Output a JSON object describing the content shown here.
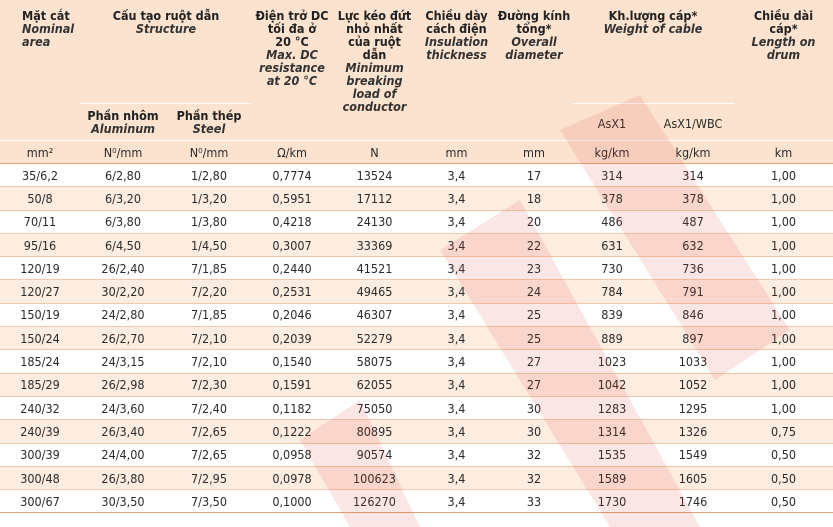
{
  "headers": {
    "area": {
      "vi": "Mặt cắt",
      "en1": "Nominal",
      "en2": "area"
    },
    "structure": {
      "vi": "Cấu tạo ruột dẫn",
      "en": "Structure"
    },
    "aluminum": {
      "vi": "Phần nhôm",
      "en": "Aluminum"
    },
    "steel": {
      "vi": "Phần thép",
      "en": "Steel"
    },
    "resistance": {
      "vi1": "Điện trở DC",
      "vi2": "tối đa ở",
      "vi3": "20 °C",
      "en1": "Max. DC",
      "en2": "resistance",
      "en3": "at 20 °C"
    },
    "breaking": {
      "vi1": "Lực kéo đứt",
      "vi2": "nhỏ nhất",
      "vi3": "của ruột",
      "vi4": "dẫn",
      "en1": "Minimum",
      "en2": "breaking",
      "en3": "load of",
      "en4": "conductor"
    },
    "insulation": {
      "vi1": "Chiều dày",
      "vi2": "cách điện",
      "en1": "Insulation",
      "en2": "thickness"
    },
    "diameter": {
      "vi1": "Đường kính",
      "vi2": "tổng*",
      "en1": "Overall",
      "en2": "diameter"
    },
    "weight": {
      "vi": "Kh.lượng cáp*",
      "en": "Weight of cable",
      "sub1": "AsX1",
      "sub2": "AsX1/WBC"
    },
    "length": {
      "vi1": "Chiều dài",
      "vi2": "cáp*",
      "en1": "Length on",
      "en2": "drum"
    }
  },
  "units": [
    "mm²",
    "N⁰/mm",
    "N⁰/mm",
    "Ω/km",
    "N",
    "mm",
    "mm",
    "kg/km",
    "kg/km",
    "km"
  ],
  "rows": [
    [
      "35/6,2",
      "6/2,80",
      "1/2,80",
      "0,7774",
      "13524",
      "3,4",
      "17",
      "314",
      "314",
      "1,00"
    ],
    [
      "50/8",
      "6/3,20",
      "1/3,20",
      "0,5951",
      "17112",
      "3,4",
      "18",
      "378",
      "378",
      "1,00"
    ],
    [
      "70/11",
      "6/3,80",
      "1/3,80",
      "0,4218",
      "24130",
      "3,4",
      "20",
      "486",
      "487",
      "1,00"
    ],
    [
      "95/16",
      "6/4,50",
      "1/4,50",
      "0,3007",
      "33369",
      "3,4",
      "22",
      "631",
      "632",
      "1,00"
    ],
    [
      "120/19",
      "26/2,40",
      "7/1,85",
      "0,2440",
      "41521",
      "3,4",
      "23",
      "730",
      "736",
      "1,00"
    ],
    [
      "120/27",
      "30/2,20",
      "7/2,20",
      "0,2531",
      "49465",
      "3,4",
      "24",
      "784",
      "791",
      "1,00"
    ],
    [
      "150/19",
      "24/2,80",
      "7/1,85",
      "0,2046",
      "46307",
      "3,4",
      "25",
      "839",
      "846",
      "1,00"
    ],
    [
      "150/24",
      "26/2,70",
      "7/2,10",
      "0,2039",
      "52279",
      "3,4",
      "25",
      "889",
      "897",
      "1,00"
    ],
    [
      "185/24",
      "24/3,15",
      "7/2,10",
      "0,1540",
      "58075",
      "3,4",
      "27",
      "1023",
      "1033",
      "1,00"
    ],
    [
      "185/29",
      "26/2,98",
      "7/2,30",
      "0,1591",
      "62055",
      "3,4",
      "27",
      "1042",
      "1052",
      "1,00"
    ],
    [
      "240/32",
      "24/3,60",
      "7/2,40",
      "0,1182",
      "75050",
      "3,4",
      "30",
      "1283",
      "1295",
      "1,00"
    ],
    [
      "240/39",
      "26/3,40",
      "7/2,65",
      "0,1222",
      "80895",
      "3,4",
      "30",
      "1314",
      "1326",
      "0,75"
    ],
    [
      "300/39",
      "24/4,00",
      "7/2,65",
      "0,0958",
      "90574",
      "3,4",
      "32",
      "1535",
      "1549",
      "0,50"
    ],
    [
      "300/48",
      "26/3,80",
      "7/2,95",
      "0,0978",
      "100623",
      "3,4",
      "32",
      "1589",
      "1605",
      "0,50"
    ],
    [
      "300/67",
      "30/3,50",
      "7/3,50",
      "0,1000",
      "126270",
      "3,4",
      "33",
      "1730",
      "1746",
      "0,50"
    ]
  ],
  "colors": {
    "header_bg": "#fbe3cf",
    "alt_row_bg": "#fdece0",
    "line": "#e8a171",
    "watermark": "#e03a3a"
  }
}
